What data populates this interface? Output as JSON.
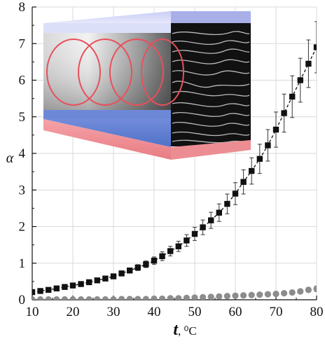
{
  "chart_data": {
    "type": "scatter",
    "xlabel_main": "t",
    "xlabel_unit": ", ⁰C",
    "ylabel": "α",
    "xlim": [
      10,
      80
    ],
    "ylim": [
      0,
      8
    ],
    "x_ticks": [
      "10",
      "20",
      "30",
      "40",
      "50",
      "60",
      "70",
      "80"
    ],
    "y_ticks": [
      "0",
      "1",
      "2",
      "3",
      "4",
      "5",
      "6",
      "7",
      "8"
    ],
    "grid": true,
    "inset_image": "cholesteric-cell-illustration",
    "series": [
      {
        "marker": "square",
        "color": "#111111",
        "line": "dashed",
        "x": [
          10,
          12,
          14,
          16,
          18,
          20,
          22,
          24,
          26,
          28,
          30,
          32,
          34,
          36,
          38,
          40,
          42,
          44,
          46,
          48,
          50,
          52,
          54,
          56,
          58,
          60,
          62,
          64,
          66,
          68,
          70,
          72,
          74,
          76,
          78,
          80
        ],
        "y": [
          0.21,
          0.24,
          0.27,
          0.31,
          0.35,
          0.39,
          0.43,
          0.48,
          0.53,
          0.58,
          0.64,
          0.72,
          0.8,
          0.88,
          0.97,
          1.07,
          1.19,
          1.33,
          1.46,
          1.62,
          1.8,
          1.98,
          2.17,
          2.38,
          2.62,
          2.9,
          3.22,
          3.52,
          3.85,
          4.22,
          4.65,
          5.1,
          5.55,
          6.0,
          6.45,
          6.9
        ],
        "err": [
          0.05,
          0.05,
          0.05,
          0.05,
          0.05,
          0.05,
          0.05,
          0.05,
          0.05,
          0.06,
          0.06,
          0.07,
          0.07,
          0.08,
          0.09,
          0.1,
          0.12,
          0.13,
          0.14,
          0.16,
          0.18,
          0.2,
          0.22,
          0.24,
          0.27,
          0.3,
          0.33,
          0.36,
          0.4,
          0.43,
          0.48,
          0.52,
          0.57,
          0.6,
          0.65,
          0.7
        ]
      },
      {
        "marker": "circle",
        "color": "#8c8c8c",
        "line": "none",
        "x": [
          10,
          12,
          14,
          16,
          18,
          20,
          22,
          24,
          26,
          28,
          30,
          32,
          34,
          36,
          38,
          40,
          42,
          44,
          46,
          48,
          50,
          52,
          54,
          56,
          58,
          60,
          62,
          64,
          66,
          68,
          70,
          72,
          74,
          76,
          78,
          80
        ],
        "y": [
          0.01,
          0.01,
          0.01,
          0.01,
          0.01,
          0.01,
          0.01,
          0.01,
          0.01,
          0.01,
          0.01,
          0.02,
          0.02,
          0.02,
          0.02,
          0.03,
          0.03,
          0.04,
          0.04,
          0.05,
          0.06,
          0.07,
          0.08,
          0.09,
          0.1,
          0.11,
          0.12,
          0.13,
          0.14,
          0.15,
          0.16,
          0.18,
          0.2,
          0.23,
          0.27,
          0.3
        ],
        "err": [
          0,
          0,
          0,
          0,
          0,
          0,
          0,
          0,
          0,
          0,
          0,
          0,
          0,
          0,
          0,
          0,
          0,
          0,
          0,
          0,
          0,
          0,
          0,
          0,
          0,
          0,
          0,
          0,
          0,
          0,
          0.03,
          0.04,
          0.05,
          0.06,
          0.07,
          0.08
        ]
      }
    ]
  }
}
